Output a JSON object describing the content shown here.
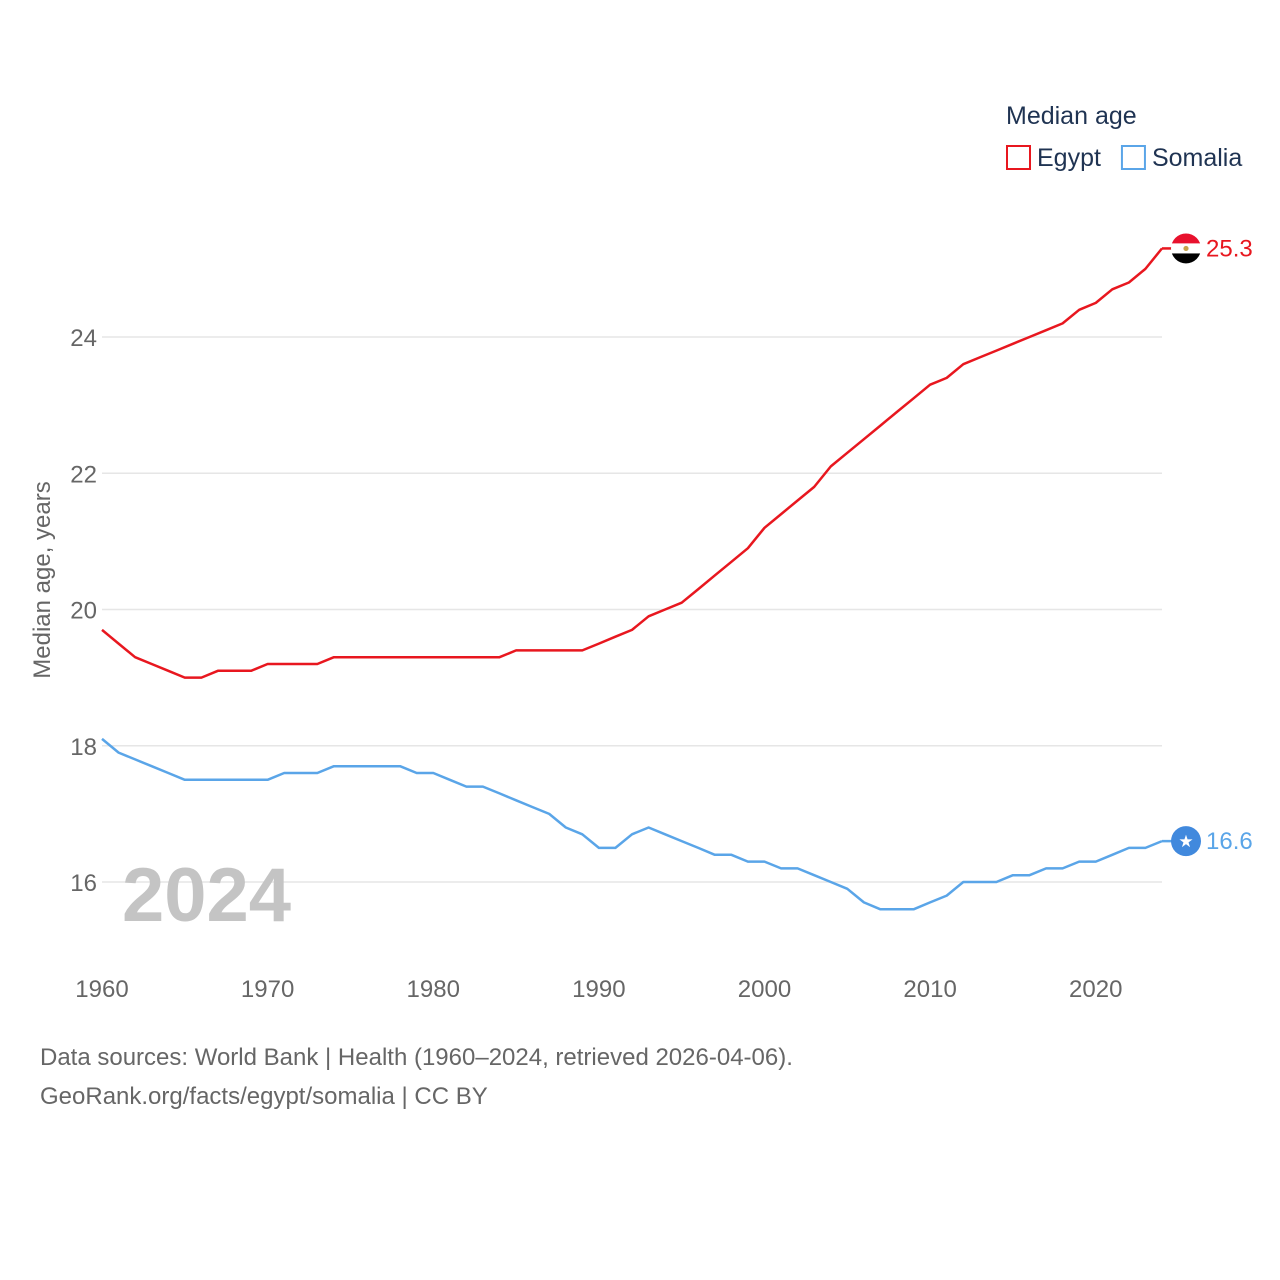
{
  "chart_data": {
    "type": "line",
    "legend_title": "Median age",
    "ylabel": "Median age, years",
    "xlabel": "",
    "x_range": [
      1960,
      2024
    ],
    "ylim": [
      15,
      26
    ],
    "x_ticks": [
      1960,
      1970,
      1980,
      1990,
      2000,
      2010,
      2020
    ],
    "y_ticks": [
      16,
      18,
      20,
      22,
      24
    ],
    "grid": true,
    "legend_position": "top-right",
    "year_label": "2024",
    "series": [
      {
        "name": "Egypt",
        "color": "#e8171f",
        "end_label": "25.3",
        "flag_icon": "egypt-flag-icon",
        "x": [
          1960,
          1961,
          1962,
          1963,
          1964,
          1965,
          1966,
          1967,
          1968,
          1969,
          1970,
          1971,
          1972,
          1973,
          1974,
          1975,
          1976,
          1977,
          1978,
          1979,
          1980,
          1981,
          1982,
          1983,
          1984,
          1985,
          1986,
          1987,
          1988,
          1989,
          1990,
          1991,
          1992,
          1993,
          1994,
          1995,
          1996,
          1997,
          1998,
          1999,
          2000,
          2001,
          2002,
          2003,
          2004,
          2005,
          2006,
          2007,
          2008,
          2009,
          2010,
          2011,
          2012,
          2013,
          2014,
          2015,
          2016,
          2017,
          2018,
          2019,
          2020,
          2021,
          2022,
          2023,
          2024
        ],
        "values": [
          19.7,
          19.5,
          19.3,
          19.2,
          19.1,
          19.0,
          19.0,
          19.1,
          19.1,
          19.1,
          19.2,
          19.2,
          19.2,
          19.2,
          19.3,
          19.3,
          19.3,
          19.3,
          19.3,
          19.3,
          19.3,
          19.3,
          19.3,
          19.3,
          19.3,
          19.4,
          19.4,
          19.4,
          19.4,
          19.4,
          19.5,
          19.6,
          19.7,
          19.9,
          20.0,
          20.1,
          20.3,
          20.5,
          20.7,
          20.9,
          21.2,
          21.4,
          21.6,
          21.8,
          22.1,
          22.3,
          22.5,
          22.7,
          22.9,
          23.1,
          23.3,
          23.4,
          23.6,
          23.7,
          23.8,
          23.9,
          24.0,
          24.1,
          24.2,
          24.4,
          24.5,
          24.7,
          24.8,
          25.0,
          25.3
        ]
      },
      {
        "name": "Somalia",
        "color": "#5aa5e8",
        "end_label": "16.6",
        "flag_icon": "somalia-flag-icon",
        "x": [
          1960,
          1961,
          1962,
          1963,
          1964,
          1965,
          1966,
          1967,
          1968,
          1969,
          1970,
          1971,
          1972,
          1973,
          1974,
          1975,
          1976,
          1977,
          1978,
          1979,
          1980,
          1981,
          1982,
          1983,
          1984,
          1985,
          1986,
          1987,
          1988,
          1989,
          1990,
          1991,
          1992,
          1993,
          1994,
          1995,
          1996,
          1997,
          1998,
          1999,
          2000,
          2001,
          2002,
          2003,
          2004,
          2005,
          2006,
          2007,
          2008,
          2009,
          2010,
          2011,
          2012,
          2013,
          2014,
          2015,
          2016,
          2017,
          2018,
          2019,
          2020,
          2021,
          2022,
          2023,
          2024
        ],
        "values": [
          18.1,
          17.9,
          17.8,
          17.7,
          17.6,
          17.5,
          17.5,
          17.5,
          17.5,
          17.5,
          17.5,
          17.6,
          17.6,
          17.6,
          17.7,
          17.7,
          17.7,
          17.7,
          17.7,
          17.6,
          17.6,
          17.5,
          17.4,
          17.4,
          17.3,
          17.2,
          17.1,
          17.0,
          16.8,
          16.7,
          16.5,
          16.5,
          16.7,
          16.8,
          16.7,
          16.6,
          16.5,
          16.4,
          16.4,
          16.3,
          16.3,
          16.2,
          16.2,
          16.1,
          16.0,
          15.9,
          15.7,
          15.6,
          15.6,
          15.6,
          15.7,
          15.8,
          16.0,
          16.0,
          16.0,
          16.1,
          16.1,
          16.2,
          16.2,
          16.3,
          16.3,
          16.4,
          16.5,
          16.5,
          16.6
        ]
      }
    ]
  },
  "footer": {
    "line1": "Data sources: World Bank | Health (1960–2024, retrieved 2026-04-06).",
    "line2": "GeoRank.org/facts/egypt/somalia | CC BY"
  }
}
